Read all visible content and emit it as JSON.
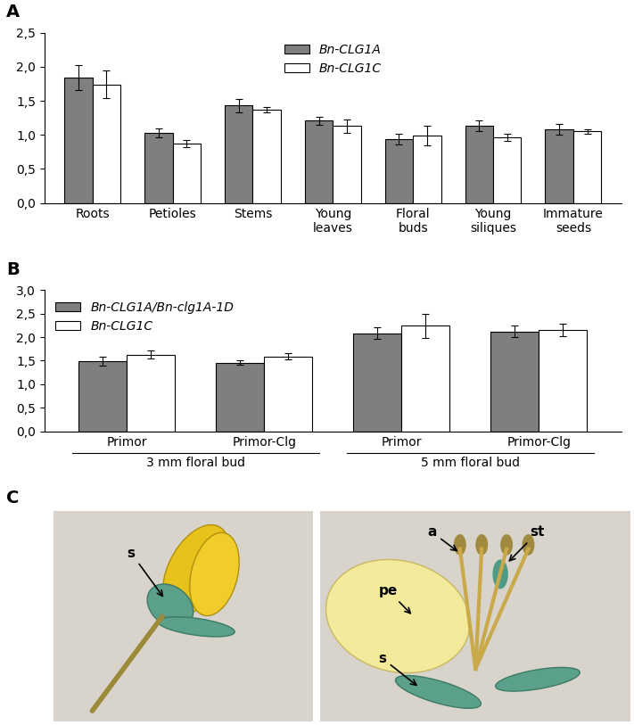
{
  "chart_data": [
    {
      "type": "bar",
      "title": "A",
      "categories": [
        "Roots",
        "Petioles",
        "Stems",
        "Young leaves",
        "Floral buds",
        "Young siliques",
        "Immature seeds"
      ],
      "series": [
        {
          "name": "Bn-CLG1A",
          "color": "#7f7f7f",
          "values": [
            1.84,
            1.03,
            1.43,
            1.21,
            0.94,
            1.13,
            1.08
          ],
          "errors": [
            0.18,
            0.06,
            0.1,
            0.06,
            0.08,
            0.08,
            0.08
          ]
        },
        {
          "name": "Bn-CLG1C",
          "color": "#ffffff",
          "values": [
            1.74,
            0.87,
            1.37,
            1.13,
            0.99,
            0.96,
            1.05
          ],
          "errors": [
            0.2,
            0.05,
            0.04,
            0.1,
            0.15,
            0.05,
            0.03
          ]
        }
      ],
      "ylim": [
        0,
        2.5
      ],
      "yticks": [
        {
          "value": 0,
          "label": "0,0"
        },
        {
          "value": 0.5,
          "label": "0,5"
        },
        {
          "value": 1.0,
          "label": "1,0"
        },
        {
          "value": 1.5,
          "label": "1,5"
        },
        {
          "value": 2.0,
          "label": "2,0"
        },
        {
          "value": 2.5,
          "label": "2,5"
        }
      ],
      "legend": "upper center",
      "grid": false
    },
    {
      "type": "bar",
      "title": "B",
      "categories": [
        "Primor",
        "Primor-Clg",
        "Primor",
        "Primor-Clg"
      ],
      "groups": [
        {
          "label": "3 mm floral bud",
          "span": [
            0,
            1
          ]
        },
        {
          "label": "5 mm floral bud",
          "span": [
            2,
            3
          ]
        }
      ],
      "series": [
        {
          "name": "Bn-CLG1A/Bn-clg1A-1D",
          "color": "#7f7f7f",
          "values": [
            1.49,
            1.46,
            2.08,
            2.12
          ],
          "errors": [
            0.1,
            0.05,
            0.12,
            0.12
          ]
        },
        {
          "name": "Bn-CLG1C",
          "color": "#ffffff",
          "values": [
            1.63,
            1.59,
            2.24,
            2.15
          ],
          "errors": [
            0.08,
            0.07,
            0.25,
            0.13
          ]
        }
      ],
      "ylim": [
        0,
        3.0
      ],
      "yticks": [
        {
          "value": 0,
          "label": "0,0"
        },
        {
          "value": 0.5,
          "label": "0,5"
        },
        {
          "value": 1.0,
          "label": "1,0"
        },
        {
          "value": 1.5,
          "label": "1,5"
        },
        {
          "value": 2.0,
          "label": "2,0"
        },
        {
          "value": 2.5,
          "label": "2,5"
        },
        {
          "value": 3.0,
          "label": "3,0"
        }
      ],
      "legend": "upper left",
      "grid": false
    }
  ],
  "panel_c": {
    "label": "C",
    "images": [
      {
        "annotations": [
          "s"
        ]
      },
      {
        "annotations": [
          "a",
          "pe",
          "st",
          "s"
        ]
      }
    ]
  }
}
